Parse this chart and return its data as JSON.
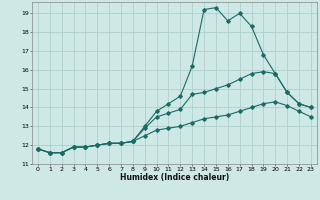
{
  "xlabel": "Humidex (Indice chaleur)",
  "bg_color": "#cde8e5",
  "grid_color": "#aecfcc",
  "line_color": "#1a6b65",
  "xlim": [
    -0.5,
    23.5
  ],
  "ylim": [
    11,
    19.6
  ],
  "yticks": [
    11,
    12,
    13,
    14,
    15,
    16,
    17,
    18,
    19
  ],
  "xticks": [
    0,
    1,
    2,
    3,
    4,
    5,
    6,
    7,
    8,
    9,
    10,
    11,
    12,
    13,
    14,
    15,
    16,
    17,
    18,
    19,
    20,
    21,
    22,
    23
  ],
  "x": [
    0,
    1,
    2,
    3,
    4,
    5,
    6,
    7,
    8,
    9,
    10,
    11,
    12,
    13,
    14,
    15,
    16,
    17,
    18,
    19,
    20,
    21,
    22,
    23
  ],
  "line1": [
    11.8,
    11.6,
    11.6,
    11.9,
    11.9,
    12.0,
    12.1,
    12.1,
    12.2,
    13.0,
    13.8,
    14.2,
    14.6,
    16.2,
    19.2,
    19.3,
    18.6,
    19.0,
    18.3,
    16.8,
    15.8,
    14.8,
    14.2,
    14.0
  ],
  "line2": [
    11.8,
    11.6,
    11.6,
    11.9,
    11.9,
    12.0,
    12.1,
    12.1,
    12.2,
    12.9,
    13.5,
    13.7,
    13.9,
    14.7,
    14.8,
    15.0,
    15.2,
    15.5,
    15.8,
    15.9,
    15.8,
    14.8,
    14.2,
    14.0
  ],
  "line3": [
    11.8,
    11.6,
    11.6,
    11.9,
    11.9,
    12.0,
    12.1,
    12.1,
    12.2,
    12.5,
    12.8,
    12.9,
    13.0,
    13.2,
    13.4,
    13.5,
    13.6,
    13.8,
    14.0,
    14.2,
    14.3,
    14.1,
    13.8,
    13.5
  ]
}
